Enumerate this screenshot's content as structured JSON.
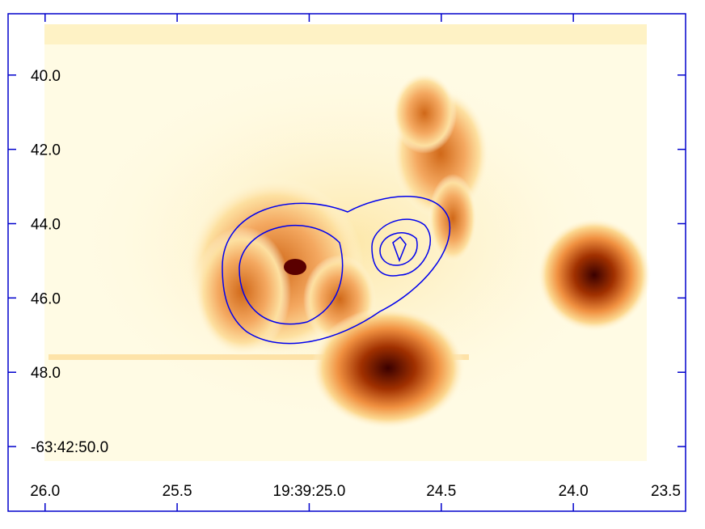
{
  "chart_data": {
    "type": "image",
    "xlim": [
      26.14,
      23.575
    ],
    "ylim": [
      51.74,
      38.35
    ],
    "xticks": [
      {
        "value": 26.0,
        "label": "26.0"
      },
      {
        "value": 25.5,
        "label": "25.5"
      },
      {
        "value": 25.0,
        "label": "19:39:25.0"
      },
      {
        "value": 24.5,
        "label": "24.5"
      },
      {
        "value": 24.0,
        "label": "24.0"
      },
      {
        "value": 23.5,
        "label": "23.5"
      }
    ],
    "yticks": [
      {
        "value": 40.0,
        "label": "40.0"
      },
      {
        "value": 42.0,
        "label": "42.0"
      },
      {
        "value": 44.0,
        "label": "44.0"
      },
      {
        "value": 46.0,
        "label": "46.0"
      },
      {
        "value": 48.0,
        "label": "48.0"
      },
      {
        "value": 50.0,
        "label": "-63:42:50.0"
      }
    ],
    "frame_color": "#0000cc",
    "contour_color": "#0000ee"
  }
}
